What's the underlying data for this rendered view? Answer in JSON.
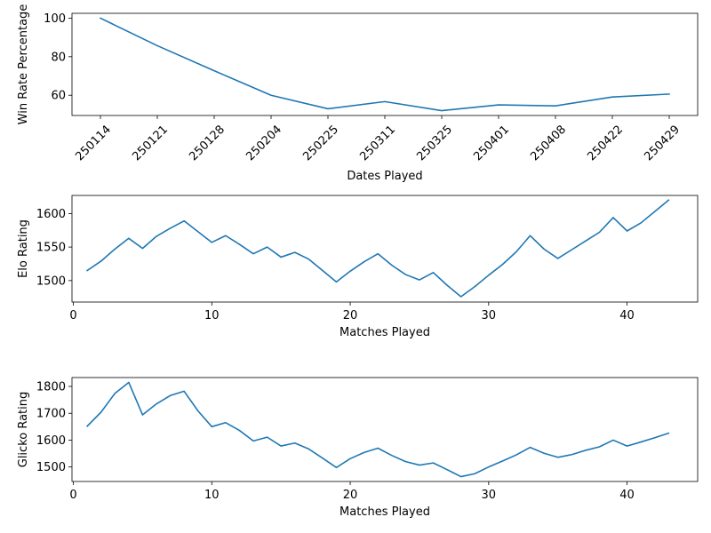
{
  "chart_data": [
    {
      "type": "line",
      "x_kind": "category",
      "categories": [
        "250114",
        "250121",
        "250128",
        "250204",
        "250225",
        "250311",
        "250325",
        "250401",
        "250408",
        "250422",
        "250429"
      ],
      "series": [
        {
          "values": [
            100,
            85.7,
            72.7,
            60,
            53,
            56.7,
            52,
            55,
            54.5,
            59.1,
            60.6
          ]
        }
      ],
      "xlabel": "Dates Played",
      "ylabel": "Win Rate Percentage",
      "ylim": [
        49.5,
        102.5
      ],
      "yticks": [
        60,
        80,
        100
      ],
      "grid": false
    },
    {
      "type": "line",
      "x_kind": "numeric",
      "x": [
        1,
        2,
        3,
        4,
        5,
        6,
        7,
        8,
        9,
        10,
        11,
        12,
        13,
        14,
        15,
        16,
        17,
        18,
        19,
        20,
        21,
        22,
        23,
        24,
        25,
        26,
        27,
        28,
        29,
        30,
        31,
        32,
        33,
        34,
        35,
        36,
        37,
        38,
        39,
        40,
        41,
        42,
        43
      ],
      "series": [
        {
          "values": [
            1515,
            1529,
            1547,
            1563,
            1548,
            1566,
            1578,
            1589,
            1573,
            1557,
            1567,
            1554,
            1540,
            1550,
            1535,
            1542,
            1532,
            1515,
            1498,
            1514,
            1528,
            1540,
            1523,
            1509,
            1501,
            1512,
            1493,
            1476,
            1491,
            1508,
            1524,
            1543,
            1567,
            1547,
            1533,
            1546,
            1559,
            1572,
            1594,
            1574,
            1586,
            1603,
            1620
          ]
        }
      ],
      "xlabel": "Matches Played",
      "ylabel": "Elo Rating",
      "xlim": [
        -0.1,
        45.1
      ],
      "ylim": [
        1468,
        1627
      ],
      "xticks": [
        0,
        10,
        20,
        30,
        40
      ],
      "yticks": [
        1500,
        1550,
        1600
      ],
      "grid": false
    },
    {
      "type": "line",
      "x_kind": "numeric",
      "x": [
        1,
        2,
        3,
        4,
        5,
        6,
        7,
        8,
        9,
        10,
        11,
        12,
        13,
        14,
        15,
        16,
        17,
        18,
        19,
        20,
        21,
        22,
        23,
        24,
        25,
        26,
        27,
        28,
        29,
        30,
        31,
        32,
        33,
        34,
        35,
        36,
        37,
        38,
        39,
        40,
        41,
        42,
        43
      ],
      "series": [
        {
          "values": [
            1652,
            1704,
            1774,
            1815,
            1694,
            1735,
            1766,
            1782,
            1709,
            1650,
            1665,
            1636,
            1597,
            1611,
            1578,
            1589,
            1567,
            1533,
            1498,
            1531,
            1554,
            1570,
            1543,
            1520,
            1507,
            1515,
            1490,
            1464,
            1475,
            1500,
            1522,
            1545,
            1573,
            1551,
            1536,
            1546,
            1562,
            1575,
            1600,
            1578,
            1593,
            1609,
            1626
          ]
        }
      ],
      "xlabel": "Matches Played",
      "ylabel": "Glicko Rating",
      "xlim": [
        -0.1,
        45.1
      ],
      "ylim": [
        1446,
        1833
      ],
      "xticks": [
        0,
        10,
        20,
        30,
        40
      ],
      "yticks": [
        1500,
        1600,
        1700,
        1800
      ],
      "grid": false
    }
  ],
  "colors": {
    "line": "#1f77b4",
    "frame": "#000000",
    "background": "#ffffff"
  }
}
